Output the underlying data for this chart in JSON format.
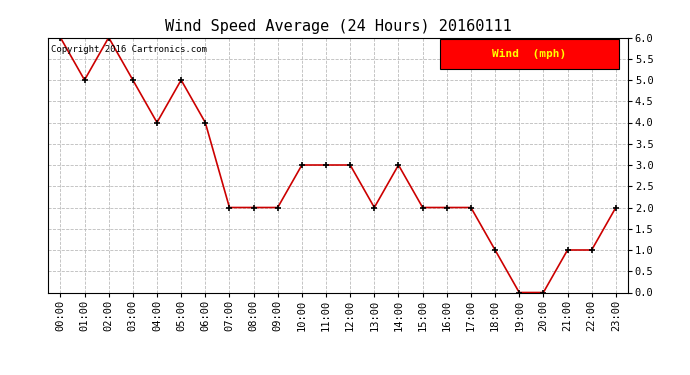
{
  "title": "Wind Speed Average (24 Hours) 20160111",
  "copyright_text": "Copyright 2016 Cartronics.com",
  "legend_label": "Wind  (mph)",
  "x_labels": [
    "00:00",
    "01:00",
    "02:00",
    "03:00",
    "04:00",
    "05:00",
    "06:00",
    "07:00",
    "08:00",
    "09:00",
    "10:00",
    "11:00",
    "12:00",
    "13:00",
    "14:00",
    "15:00",
    "16:00",
    "17:00",
    "18:00",
    "19:00",
    "20:00",
    "21:00",
    "22:00",
    "23:00"
  ],
  "y_values": [
    6.0,
    5.0,
    6.0,
    5.0,
    4.0,
    5.0,
    4.0,
    2.0,
    2.0,
    2.0,
    3.0,
    3.0,
    3.0,
    2.0,
    3.0,
    2.0,
    2.0,
    2.0,
    1.0,
    0.0,
    0.0,
    1.0,
    1.0,
    2.0
  ],
  "ylim": [
    0.0,
    6.0
  ],
  "yticks": [
    0.0,
    0.5,
    1.0,
    1.5,
    2.0,
    2.5,
    3.0,
    3.5,
    4.0,
    4.5,
    5.0,
    5.5,
    6.0
  ],
  "line_color": "#cc0000",
  "marker_color": "#000000",
  "bg_color": "#ffffff",
  "grid_color": "#bbbbbb",
  "legend_bg": "#ff0000",
  "legend_text_color": "#ffff00",
  "title_fontsize": 11,
  "copyright_fontsize": 6.5,
  "tick_fontsize": 7.5,
  "legend_fontsize": 8
}
